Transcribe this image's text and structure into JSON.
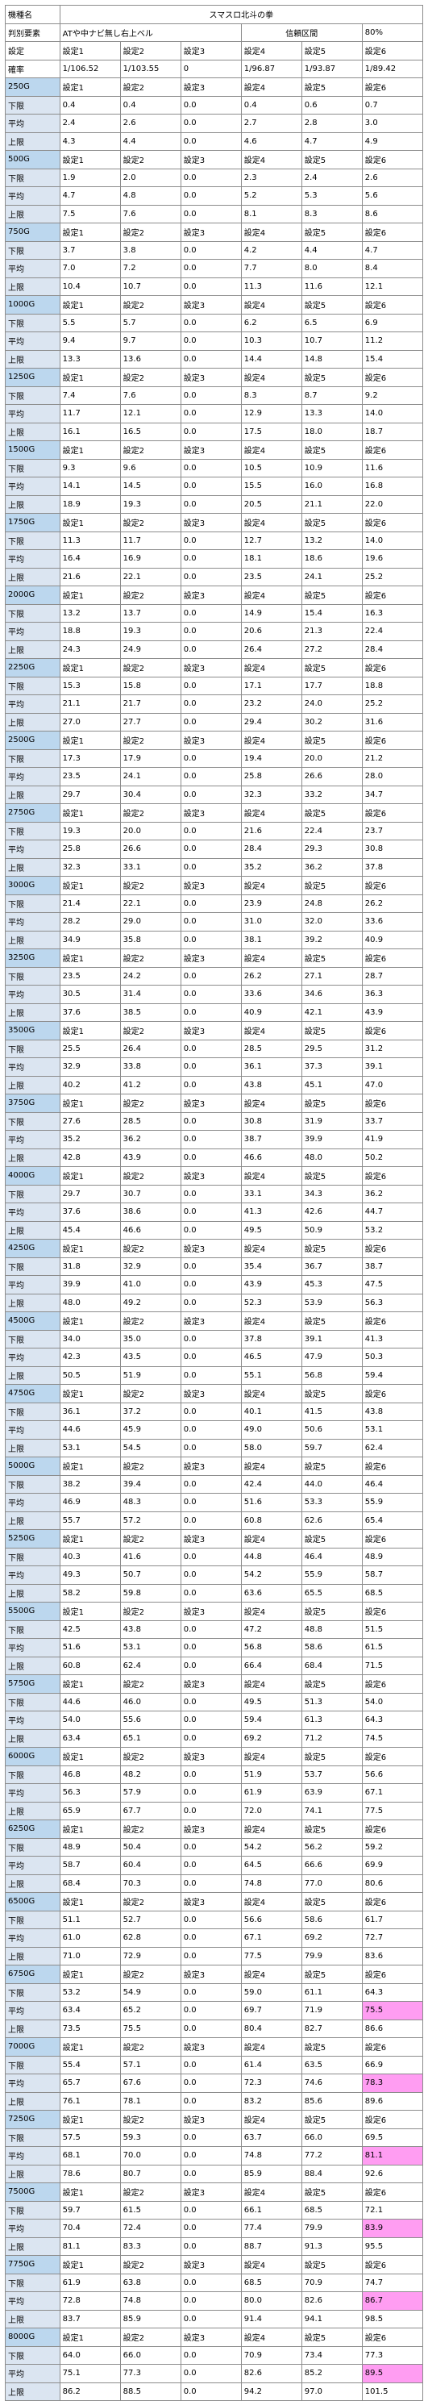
{
  "header": {
    "r0": {
      "label": "機種名",
      "title": "スマスロ北斗の拳"
    },
    "r1": {
      "label": "判別要素",
      "element": "ATや中ナビ無し右上ベル",
      "conf_label": "信頼区間",
      "conf_value": "80%"
    },
    "r2": {
      "label": "設定",
      "cols": [
        "設定1",
        "設定2",
        "設定3",
        "設定4",
        "設定5",
        "設定6"
      ]
    },
    "r3": {
      "label": "確率",
      "cols": [
        "1/106.52",
        "1/103.55",
        "0",
        "1/96.87",
        "1/93.87",
        "1/89.42"
      ]
    }
  },
  "row_labels": {
    "lower": "下限",
    "avg": "平均",
    "upper": "上限"
  },
  "setting_labels": [
    "設定1",
    "設定2",
    "設定3",
    "設定4",
    "設定5",
    "設定6"
  ],
  "accent_colors": {
    "g_header_bg": "#bcd7ee",
    "g_header_text": "#1f4e79",
    "highlight": "#ff9df2"
  },
  "blocks": [
    {
      "g": "250G",
      "lower": [
        "0.4",
        "0.4",
        "0.0",
        "0.4",
        "0.6",
        "0.7"
      ],
      "avg": [
        "2.4",
        "2.6",
        "0.0",
        "2.7",
        "2.8",
        "3.0"
      ],
      "upper": [
        "4.3",
        "4.4",
        "0.0",
        "4.6",
        "4.7",
        "4.9"
      ]
    },
    {
      "g": "500G",
      "lower": [
        "1.9",
        "2.0",
        "0.0",
        "2.3",
        "2.4",
        "2.6"
      ],
      "avg": [
        "4.7",
        "4.8",
        "0.0",
        "5.2",
        "5.3",
        "5.6"
      ],
      "upper": [
        "7.5",
        "7.6",
        "0.0",
        "8.1",
        "8.3",
        "8.6"
      ]
    },
    {
      "g": "750G",
      "lower": [
        "3.7",
        "3.8",
        "0.0",
        "4.2",
        "4.4",
        "4.7"
      ],
      "avg": [
        "7.0",
        "7.2",
        "0.0",
        "7.7",
        "8.0",
        "8.4"
      ],
      "upper": [
        "10.4",
        "10.7",
        "0.0",
        "11.3",
        "11.6",
        "12.1"
      ]
    },
    {
      "g": "1000G",
      "lower": [
        "5.5",
        "5.7",
        "0.0",
        "6.2",
        "6.5",
        "6.9"
      ],
      "avg": [
        "9.4",
        "9.7",
        "0.0",
        "10.3",
        "10.7",
        "11.2"
      ],
      "upper": [
        "13.3",
        "13.6",
        "0.0",
        "14.4",
        "14.8",
        "15.4"
      ]
    },
    {
      "g": "1250G",
      "lower": [
        "7.4",
        "7.6",
        "0.0",
        "8.3",
        "8.7",
        "9.2"
      ],
      "avg": [
        "11.7",
        "12.1",
        "0.0",
        "12.9",
        "13.3",
        "14.0"
      ],
      "upper": [
        "16.1",
        "16.5",
        "0.0",
        "17.5",
        "18.0",
        "18.7"
      ]
    },
    {
      "g": "1500G",
      "lower": [
        "9.3",
        "9.6",
        "0.0",
        "10.5",
        "10.9",
        "11.6"
      ],
      "avg": [
        "14.1",
        "14.5",
        "0.0",
        "15.5",
        "16.0",
        "16.8"
      ],
      "upper": [
        "18.9",
        "19.3",
        "0.0",
        "20.5",
        "21.1",
        "22.0"
      ]
    },
    {
      "g": "1750G",
      "lower": [
        "11.3",
        "11.7",
        "0.0",
        "12.7",
        "13.2",
        "14.0"
      ],
      "avg": [
        "16.4",
        "16.9",
        "0.0",
        "18.1",
        "18.6",
        "19.6"
      ],
      "upper": [
        "21.6",
        "22.1",
        "0.0",
        "23.5",
        "24.1",
        "25.2"
      ]
    },
    {
      "g": "2000G",
      "lower": [
        "13.2",
        "13.7",
        "0.0",
        "14.9",
        "15.4",
        "16.3"
      ],
      "avg": [
        "18.8",
        "19.3",
        "0.0",
        "20.6",
        "21.3",
        "22.4"
      ],
      "upper": [
        "24.3",
        "24.9",
        "0.0",
        "26.4",
        "27.2",
        "28.4"
      ]
    },
    {
      "g": "2250G",
      "lower": [
        "15.3",
        "15.8",
        "0.0",
        "17.1",
        "17.7",
        "18.8"
      ],
      "avg": [
        "21.1",
        "21.7",
        "0.0",
        "23.2",
        "24.0",
        "25.2"
      ],
      "upper": [
        "27.0",
        "27.7",
        "0.0",
        "29.4",
        "30.2",
        "31.6"
      ]
    },
    {
      "g": "2500G",
      "lower": [
        "17.3",
        "17.9",
        "0.0",
        "19.4",
        "20.0",
        "21.2"
      ],
      "avg": [
        "23.5",
        "24.1",
        "0.0",
        "25.8",
        "26.6",
        "28.0"
      ],
      "upper": [
        "29.7",
        "30.4",
        "0.0",
        "32.3",
        "33.2",
        "34.7"
      ]
    },
    {
      "g": "2750G",
      "lower": [
        "19.3",
        "20.0",
        "0.0",
        "21.6",
        "22.4",
        "23.7"
      ],
      "avg": [
        "25.8",
        "26.6",
        "0.0",
        "28.4",
        "29.3",
        "30.8"
      ],
      "upper": [
        "32.3",
        "33.1",
        "0.0",
        "35.2",
        "36.2",
        "37.8"
      ]
    },
    {
      "g": "3000G",
      "lower": [
        "21.4",
        "22.1",
        "0.0",
        "23.9",
        "24.8",
        "26.2"
      ],
      "avg": [
        "28.2",
        "29.0",
        "0.0",
        "31.0",
        "32.0",
        "33.6"
      ],
      "upper": [
        "34.9",
        "35.8",
        "0.0",
        "38.1",
        "39.2",
        "40.9"
      ]
    },
    {
      "g": "3250G",
      "lower": [
        "23.5",
        "24.2",
        "0.0",
        "26.2",
        "27.1",
        "28.7"
      ],
      "avg": [
        "30.5",
        "31.4",
        "0.0",
        "33.6",
        "34.6",
        "36.3"
      ],
      "upper": [
        "37.6",
        "38.5",
        "0.0",
        "40.9",
        "42.1",
        "43.9"
      ]
    },
    {
      "g": "3500G",
      "lower": [
        "25.5",
        "26.4",
        "0.0",
        "28.5",
        "29.5",
        "31.2"
      ],
      "avg": [
        "32.9",
        "33.8",
        "0.0",
        "36.1",
        "37.3",
        "39.1"
      ],
      "upper": [
        "40.2",
        "41.2",
        "0.0",
        "43.8",
        "45.1",
        "47.0"
      ]
    },
    {
      "g": "3750G",
      "lower": [
        "27.6",
        "28.5",
        "0.0",
        "30.8",
        "31.9",
        "33.7"
      ],
      "avg": [
        "35.2",
        "36.2",
        "0.0",
        "38.7",
        "39.9",
        "41.9"
      ],
      "upper": [
        "42.8",
        "43.9",
        "0.0",
        "46.6",
        "48.0",
        "50.2"
      ]
    },
    {
      "g": "4000G",
      "lower": [
        "29.7",
        "30.7",
        "0.0",
        "33.1",
        "34.3",
        "36.2"
      ],
      "avg": [
        "37.6",
        "38.6",
        "0.0",
        "41.3",
        "42.6",
        "44.7"
      ],
      "upper": [
        "45.4",
        "46.6",
        "0.0",
        "49.5",
        "50.9",
        "53.2"
      ]
    },
    {
      "g": "4250G",
      "lower": [
        "31.8",
        "32.9",
        "0.0",
        "35.4",
        "36.7",
        "38.7"
      ],
      "avg": [
        "39.9",
        "41.0",
        "0.0",
        "43.9",
        "45.3",
        "47.5"
      ],
      "upper": [
        "48.0",
        "49.2",
        "0.0",
        "52.3",
        "53.9",
        "56.3"
      ]
    },
    {
      "g": "4500G",
      "lower": [
        "34.0",
        "35.0",
        "0.0",
        "37.8",
        "39.1",
        "41.3"
      ],
      "avg": [
        "42.3",
        "43.5",
        "0.0",
        "46.5",
        "47.9",
        "50.3"
      ],
      "upper": [
        "50.5",
        "51.9",
        "0.0",
        "55.1",
        "56.8",
        "59.4"
      ]
    },
    {
      "g": "4750G",
      "lower": [
        "36.1",
        "37.2",
        "0.0",
        "40.1",
        "41.5",
        "43.8"
      ],
      "avg": [
        "44.6",
        "45.9",
        "0.0",
        "49.0",
        "50.6",
        "53.1"
      ],
      "upper": [
        "53.1",
        "54.5",
        "0.0",
        "58.0",
        "59.7",
        "62.4"
      ]
    },
    {
      "g": "5000G",
      "lower": [
        "38.2",
        "39.4",
        "0.0",
        "42.4",
        "44.0",
        "46.4"
      ],
      "avg": [
        "46.9",
        "48.3",
        "0.0",
        "51.6",
        "53.3",
        "55.9"
      ],
      "upper": [
        "55.7",
        "57.2",
        "0.0",
        "60.8",
        "62.6",
        "65.4"
      ]
    },
    {
      "g": "5250G",
      "lower": [
        "40.3",
        "41.6",
        "0.0",
        "44.8",
        "46.4",
        "48.9"
      ],
      "avg": [
        "49.3",
        "50.7",
        "0.0",
        "54.2",
        "55.9",
        "58.7"
      ],
      "upper": [
        "58.2",
        "59.8",
        "0.0",
        "63.6",
        "65.5",
        "68.5"
      ]
    },
    {
      "g": "5500G",
      "lower": [
        "42.5",
        "43.8",
        "0.0",
        "47.2",
        "48.8",
        "51.5"
      ],
      "avg": [
        "51.6",
        "53.1",
        "0.0",
        "56.8",
        "58.6",
        "61.5"
      ],
      "upper": [
        "60.8",
        "62.4",
        "0.0",
        "66.4",
        "68.4",
        "71.5"
      ]
    },
    {
      "g": "5750G",
      "lower": [
        "44.6",
        "46.0",
        "0.0",
        "49.5",
        "51.3",
        "54.0"
      ],
      "avg": [
        "54.0",
        "55.6",
        "0.0",
        "59.4",
        "61.3",
        "64.3"
      ],
      "upper": [
        "63.4",
        "65.1",
        "0.0",
        "69.2",
        "71.2",
        "74.5"
      ]
    },
    {
      "g": "6000G",
      "lower": [
        "46.8",
        "48.2",
        "0.0",
        "51.9",
        "53.7",
        "56.6"
      ],
      "avg": [
        "56.3",
        "57.9",
        "0.0",
        "61.9",
        "63.9",
        "67.1"
      ],
      "upper": [
        "65.9",
        "67.7",
        "0.0",
        "72.0",
        "74.1",
        "77.5"
      ]
    },
    {
      "g": "6250G",
      "lower": [
        "48.9",
        "50.4",
        "0.0",
        "54.2",
        "56.2",
        "59.2"
      ],
      "avg": [
        "58.7",
        "60.4",
        "0.0",
        "64.5",
        "66.6",
        "69.9"
      ],
      "upper": [
        "68.4",
        "70.3",
        "0.0",
        "74.8",
        "77.0",
        "80.6"
      ]
    },
    {
      "g": "6500G",
      "lower": [
        "51.1",
        "52.7",
        "0.0",
        "56.6",
        "58.6",
        "61.7"
      ],
      "avg": [
        "61.0",
        "62.8",
        "0.0",
        "67.1",
        "69.2",
        "72.7"
      ],
      "upper": [
        "71.0",
        "72.9",
        "0.0",
        "77.5",
        "79.9",
        "83.6"
      ]
    },
    {
      "g": "6750G",
      "lower": [
        "53.2",
        "54.9",
        "0.0",
        "59.0",
        "61.1",
        "64.3"
      ],
      "avg": [
        "63.4",
        "65.2",
        "0.0",
        "69.7",
        "71.9",
        "75.5"
      ],
      "upper": [
        "73.5",
        "75.5",
        "0.0",
        "80.4",
        "82.7",
        "86.6"
      ]
    },
    {
      "g": "7000G",
      "lower": [
        "55.4",
        "57.1",
        "0.0",
        "61.4",
        "63.5",
        "66.9"
      ],
      "avg": [
        "65.7",
        "67.6",
        "0.0",
        "72.3",
        "74.6",
        "78.3"
      ],
      "upper": [
        "76.1",
        "78.1",
        "0.0",
        "83.2",
        "85.6",
        "89.6"
      ]
    },
    {
      "g": "7250G",
      "lower": [
        "57.5",
        "59.3",
        "0.0",
        "63.7",
        "66.0",
        "69.5"
      ],
      "avg": [
        "68.1",
        "70.0",
        "0.0",
        "74.8",
        "77.2",
        "81.1"
      ],
      "upper": [
        "78.6",
        "80.7",
        "0.0",
        "85.9",
        "88.4",
        "92.6"
      ]
    },
    {
      "g": "7500G",
      "lower": [
        "59.7",
        "61.5",
        "0.0",
        "66.1",
        "68.5",
        "72.1"
      ],
      "avg": [
        "70.4",
        "72.4",
        "0.0",
        "77.4",
        "79.9",
        "83.9"
      ],
      "upper": [
        "81.1",
        "83.3",
        "0.0",
        "88.7",
        "91.3",
        "95.5"
      ]
    },
    {
      "g": "7750G",
      "lower": [
        "61.9",
        "63.8",
        "0.0",
        "68.5",
        "70.9",
        "74.7"
      ],
      "avg": [
        "72.8",
        "74.8",
        "0.0",
        "80.0",
        "82.6",
        "86.7"
      ],
      "upper": [
        "83.7",
        "85.9",
        "0.0",
        "91.4",
        "94.1",
        "98.5"
      ]
    },
    {
      "g": "8000G",
      "lower": [
        "64.0",
        "66.0",
        "0.0",
        "70.9",
        "73.4",
        "77.3"
      ],
      "avg": [
        "75.1",
        "77.3",
        "0.0",
        "82.6",
        "85.2",
        "89.5"
      ],
      "upper": [
        "86.2",
        "88.5",
        "0.0",
        "94.2",
        "97.0",
        "101.5"
      ]
    }
  ],
  "highlight_g": [
    "6750G",
    "7000G",
    "7250G",
    "7500G",
    "7750G",
    "8000G"
  ]
}
